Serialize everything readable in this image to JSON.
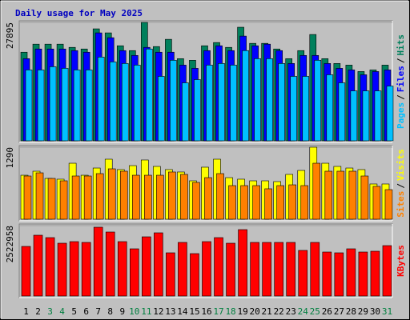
{
  "title": "Daily usage for May 2025",
  "legend_separator": "/",
  "days": [
    "1",
    "2",
    "3",
    "4",
    "5",
    "6",
    "7",
    "8",
    "9",
    "10",
    "11",
    "12",
    "13",
    "14",
    "15",
    "16",
    "17",
    "18",
    "19",
    "20",
    "21",
    "22",
    "23",
    "24",
    "25",
    "26",
    "27",
    "28",
    "29",
    "30",
    "31"
  ],
  "day_colors": [
    "#000000",
    "#000000",
    "#007f3f",
    "#007f3f",
    "#000000",
    "#000000",
    "#000000",
    "#000000",
    "#000000",
    "#007f3f",
    "#007f3f",
    "#000000",
    "#000000",
    "#000000",
    "#000000",
    "#000000",
    "#007f3f",
    "#007f3f",
    "#000000",
    "#000000",
    "#000000",
    "#000000",
    "#000000",
    "#007f3f",
    "#007f3f",
    "#000000",
    "#000000",
    "#000000",
    "#000000",
    "#000000",
    "#007f3f"
  ],
  "chart_data": [
    {
      "type": "bar",
      "ylim": [
        0,
        27895
      ],
      "yticks": [
        27895
      ],
      "series": [
        {
          "name": "Hits",
          "color": "#00805c",
          "values": [
            20875,
            22771,
            22771,
            22771,
            22012,
            21632,
            26377,
            25428,
            22392,
            21253,
            27895,
            22202,
            23910,
            19356,
            18976,
            22392,
            23151,
            22012,
            26756,
            22961,
            22961,
            21632,
            19356,
            21253,
            25048,
            19356,
            18217,
            17838,
            16319,
            16699,
            17838
          ]
        },
        {
          "name": "Files",
          "color": "#0000ff",
          "values": [
            19356,
            21632,
            21632,
            21632,
            21253,
            20874,
            25428,
            24290,
            21253,
            20115,
            22012,
            20874,
            20874,
            17838,
            17079,
            21253,
            22392,
            21253,
            24669,
            22392,
            22771,
            21253,
            18217,
            20115,
            20115,
            18217,
            17079,
            16699,
            15560,
            16319,
            16699
          ]
        },
        {
          "name": "Pages",
          "color": "#00c0ff",
          "values": [
            16699,
            16699,
            17458,
            17079,
            16699,
            16699,
            19735,
            18597,
            18217,
            17838,
            21632,
            15181,
            18976,
            13663,
            14422,
            17838,
            18217,
            17838,
            21253,
            19356,
            19356,
            18217,
            15181,
            15181,
            18976,
            15560,
            13663,
            11765,
            11765,
            11765,
            12904
          ]
        }
      ]
    },
    {
      "type": "bar",
      "ylim": [
        0,
        1290
      ],
      "yticks": [
        1290
      ],
      "series": [
        {
          "name": "Visits",
          "color": "#ffff00",
          "values": [
            788,
            860,
            731,
            717,
            1003,
            788,
            917,
            1075,
            889,
            960,
            1061,
            946,
            889,
            846,
            688,
            932,
            1075,
            745,
            717,
            688,
            688,
            674,
            803,
            874,
            1290,
            1003,
            946,
            917,
            889,
            631,
            631
          ]
        },
        {
          "name": "Sites",
          "color": "#ff8000",
          "values": [
            774,
            831,
            731,
            688,
            774,
            774,
            817,
            903,
            860,
            788,
            788,
            788,
            846,
            803,
            659,
            745,
            817,
            602,
            602,
            602,
            545,
            602,
            616,
            602,
            1003,
            860,
            860,
            860,
            774,
            588,
            530
          ]
        }
      ]
    },
    {
      "type": "bar",
      "ylim": [
        0,
        2522958
      ],
      "yticks": [
        2522958
      ],
      "series": [
        {
          "name": "KBytes",
          "color": "#ff0000",
          "values": [
            1777540,
            2178920,
            2092910,
            1892220,
            1949560,
            1920890,
            2465620,
            2293600,
            1949560,
            1691530,
            2121580,
            2264930,
            1548180,
            1920890,
            1519510,
            1949560,
            2092910,
            1892220,
            2379610,
            1920890,
            1920890,
            1920890,
            1920890,
            1634190,
            1920890,
            1576850,
            1548180,
            1691530,
            1576850,
            1605520,
            1806210
          ]
        }
      ]
    }
  ]
}
